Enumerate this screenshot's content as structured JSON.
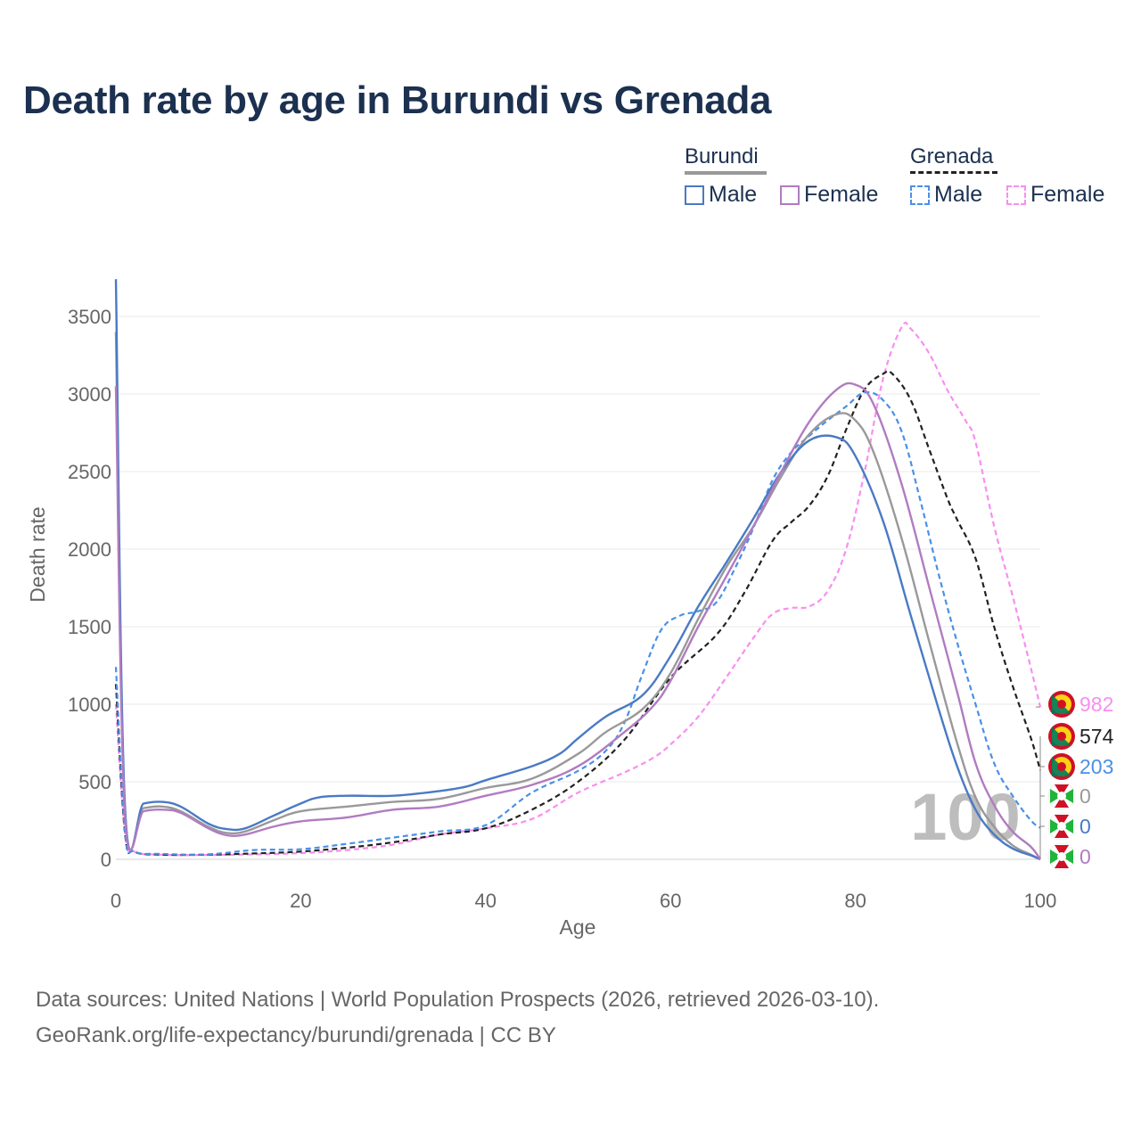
{
  "title": "Death rate by age in Burundi vs Grenada",
  "legend": {
    "groups": [
      {
        "name": "Burundi",
        "color": "#999999",
        "dash": false,
        "items": [
          {
            "label": "Male",
            "color": "#4a7ac4"
          },
          {
            "label": "Female",
            "color": "#b07cc0"
          }
        ]
      },
      {
        "name": "Grenada",
        "color": "#222222",
        "dash": true,
        "items": [
          {
            "label": "Male",
            "color": "#4a90e8"
          },
          {
            "label": "Female",
            "color": "#f98ef0"
          }
        ]
      }
    ]
  },
  "watermark": "100",
  "footer": {
    "line1": "Data sources: United Nations | World Population Prospects (2026, retrieved 2026-03-10).",
    "line2": "GeoRank.org/life-expectancy/burundi/grenada | CC BY"
  },
  "chart_data": {
    "type": "line",
    "title": "Death rate by age in Burundi vs Grenada",
    "xlabel": "Age",
    "ylabel": "Death rate",
    "xlim": [
      0,
      100
    ],
    "ylim": [
      0,
      3750
    ],
    "xticks": [
      0,
      20,
      40,
      60,
      80,
      100
    ],
    "yticks": [
      0,
      500,
      1000,
      1500,
      2000,
      2500,
      3000,
      3500
    ],
    "grid": true,
    "series": [
      {
        "name": "Grenada Female",
        "color": "#f98ef0",
        "dash": true,
        "end_label": "982",
        "points": [
          [
            0,
            1000
          ],
          [
            1,
            160
          ],
          [
            2,
            50
          ],
          [
            5,
            30
          ],
          [
            10,
            28
          ],
          [
            15,
            32
          ],
          [
            20,
            40
          ],
          [
            25,
            60
          ],
          [
            30,
            95
          ],
          [
            35,
            160
          ],
          [
            40,
            200
          ],
          [
            45,
            260
          ],
          [
            50,
            430
          ],
          [
            55,
            560
          ],
          [
            58,
            650
          ],
          [
            60,
            740
          ],
          [
            63,
            920
          ],
          [
            66,
            1170
          ],
          [
            69,
            1430
          ],
          [
            71,
            1580
          ],
          [
            73,
            1620
          ],
          [
            75,
            1630
          ],
          [
            77,
            1730
          ],
          [
            79,
            2000
          ],
          [
            81,
            2500
          ],
          [
            83,
            3100
          ],
          [
            85,
            3430
          ],
          [
            86,
            3420
          ],
          [
            88,
            3260
          ],
          [
            90,
            3020
          ],
          [
            92,
            2820
          ],
          [
            93,
            2690
          ],
          [
            95,
            2150
          ],
          [
            97,
            1700
          ],
          [
            99,
            1230
          ],
          [
            100,
            982
          ]
        ]
      },
      {
        "name": "Grenada Total",
        "color": "#222222",
        "dash": true,
        "end_label": "574",
        "points": [
          [
            0,
            1130
          ],
          [
            1,
            160
          ],
          [
            2,
            50
          ],
          [
            5,
            30
          ],
          [
            10,
            30
          ],
          [
            15,
            38
          ],
          [
            20,
            50
          ],
          [
            25,
            75
          ],
          [
            30,
            110
          ],
          [
            35,
            160
          ],
          [
            40,
            200
          ],
          [
            45,
            320
          ],
          [
            50,
            500
          ],
          [
            55,
            770
          ],
          [
            60,
            1170
          ],
          [
            65,
            1450
          ],
          [
            68,
            1720
          ],
          [
            71,
            2050
          ],
          [
            73,
            2170
          ],
          [
            75,
            2280
          ],
          [
            77,
            2470
          ],
          [
            79,
            2770
          ],
          [
            81,
            3030
          ],
          [
            83,
            3130
          ],
          [
            84,
            3130
          ],
          [
            86,
            2960
          ],
          [
            88,
            2640
          ],
          [
            90,
            2320
          ],
          [
            91,
            2190
          ],
          [
            93,
            1940
          ],
          [
            95,
            1500
          ],
          [
            97,
            1120
          ],
          [
            99,
            780
          ],
          [
            100,
            574
          ]
        ]
      },
      {
        "name": "Grenada Male",
        "color": "#4a90e8",
        "dash": true,
        "end_label": "203",
        "points": [
          [
            0,
            1240
          ],
          [
            1,
            170
          ],
          [
            2,
            50
          ],
          [
            5,
            35
          ],
          [
            10,
            32
          ],
          [
            15,
            60
          ],
          [
            20,
            65
          ],
          [
            25,
            100
          ],
          [
            30,
            140
          ],
          [
            35,
            180
          ],
          [
            40,
            220
          ],
          [
            45,
            430
          ],
          [
            50,
            570
          ],
          [
            53,
            700
          ],
          [
            55,
            880
          ],
          [
            57,
            1200
          ],
          [
            59,
            1480
          ],
          [
            61,
            1570
          ],
          [
            63,
            1600
          ],
          [
            65,
            1660
          ],
          [
            67,
            1880
          ],
          [
            69,
            2140
          ],
          [
            71,
            2440
          ],
          [
            73,
            2620
          ],
          [
            75,
            2730
          ],
          [
            77,
            2830
          ],
          [
            79,
            2920
          ],
          [
            81,
            3010
          ],
          [
            83,
            2960
          ],
          [
            85,
            2760
          ],
          [
            87,
            2320
          ],
          [
            89,
            1840
          ],
          [
            91,
            1400
          ],
          [
            93,
            1000
          ],
          [
            95,
            620
          ],
          [
            97,
            410
          ],
          [
            99,
            250
          ],
          [
            100,
            203
          ]
        ]
      },
      {
        "name": "Burundi Total",
        "color": "#999999",
        "dash": false,
        "end_label": "0",
        "points": [
          [
            0,
            3400
          ],
          [
            1,
            300
          ],
          [
            3,
            330
          ],
          [
            5,
            340
          ],
          [
            7,
            310
          ],
          [
            10,
            210
          ],
          [
            12,
            170
          ],
          [
            14,
            180
          ],
          [
            17,
            250
          ],
          [
            20,
            310
          ],
          [
            25,
            340
          ],
          [
            30,
            370
          ],
          [
            35,
            390
          ],
          [
            40,
            460
          ],
          [
            45,
            520
          ],
          [
            50,
            680
          ],
          [
            53,
            820
          ],
          [
            57,
            970
          ],
          [
            60,
            1200
          ],
          [
            63,
            1550
          ],
          [
            66,
            1880
          ],
          [
            69,
            2150
          ],
          [
            72,
            2470
          ],
          [
            75,
            2740
          ],
          [
            78,
            2870
          ],
          [
            80,
            2830
          ],
          [
            82,
            2620
          ],
          [
            85,
            2070
          ],
          [
            88,
            1400
          ],
          [
            91,
            750
          ],
          [
            93,
            400
          ],
          [
            95,
            210
          ],
          [
            97,
            90
          ],
          [
            99,
            30
          ],
          [
            100,
            0
          ]
        ]
      },
      {
        "name": "Burundi Male",
        "color": "#4a7ac4",
        "dash": false,
        "end_label": "0",
        "points": [
          [
            0,
            3740
          ],
          [
            1,
            320
          ],
          [
            3,
            360
          ],
          [
            5,
            370
          ],
          [
            7,
            340
          ],
          [
            10,
            230
          ],
          [
            12,
            195
          ],
          [
            14,
            200
          ],
          [
            17,
            280
          ],
          [
            20,
            360
          ],
          [
            22,
            400
          ],
          [
            25,
            410
          ],
          [
            30,
            410
          ],
          [
            35,
            440
          ],
          [
            38,
            470
          ],
          [
            40,
            510
          ],
          [
            45,
            600
          ],
          [
            48,
            680
          ],
          [
            50,
            780
          ],
          [
            53,
            920
          ],
          [
            57,
            1060
          ],
          [
            60,
            1310
          ],
          [
            63,
            1630
          ],
          [
            66,
            1910
          ],
          [
            69,
            2200
          ],
          [
            72,
            2500
          ],
          [
            75,
            2700
          ],
          [
            78,
            2720
          ],
          [
            80,
            2600
          ],
          [
            83,
            2180
          ],
          [
            86,
            1570
          ],
          [
            89,
            970
          ],
          [
            91,
            600
          ],
          [
            93,
            320
          ],
          [
            95,
            160
          ],
          [
            97,
            70
          ],
          [
            99,
            25
          ],
          [
            100,
            0
          ]
        ]
      },
      {
        "name": "Burundi Female",
        "color": "#b07cc0",
        "dash": false,
        "end_label": "0",
        "points": [
          [
            0,
            3050
          ],
          [
            1,
            270
          ],
          [
            3,
            310
          ],
          [
            5,
            320
          ],
          [
            7,
            300
          ],
          [
            10,
            200
          ],
          [
            12,
            155
          ],
          [
            14,
            160
          ],
          [
            17,
            210
          ],
          [
            20,
            245
          ],
          [
            25,
            270
          ],
          [
            30,
            320
          ],
          [
            35,
            340
          ],
          [
            40,
            410
          ],
          [
            45,
            480
          ],
          [
            50,
            600
          ],
          [
            55,
            820
          ],
          [
            58,
            980
          ],
          [
            60,
            1150
          ],
          [
            63,
            1500
          ],
          [
            66,
            1820
          ],
          [
            69,
            2150
          ],
          [
            72,
            2500
          ],
          [
            75,
            2820
          ],
          [
            78,
            3030
          ],
          [
            80,
            3060
          ],
          [
            82,
            2930
          ],
          [
            85,
            2420
          ],
          [
            88,
            1750
          ],
          [
            91,
            1080
          ],
          [
            93,
            620
          ],
          [
            95,
            350
          ],
          [
            97,
            180
          ],
          [
            99,
            80
          ],
          [
            100,
            0
          ]
        ]
      }
    ]
  }
}
